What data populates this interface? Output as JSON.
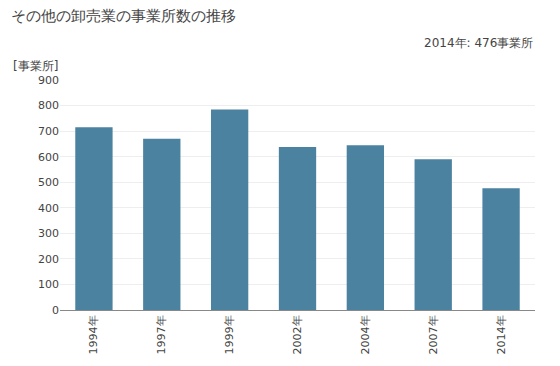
{
  "chart_data": {
    "type": "bar",
    "title": "その他の卸売業の事業所数の推移",
    "ylabel": "[事業所]",
    "annotation": "2014年: 476事業所",
    "categories": [
      "1994年",
      "1997年",
      "1999年",
      "2002年",
      "2004年",
      "2007年",
      "2014年"
    ],
    "values": [
      715,
      670,
      785,
      638,
      645,
      590,
      476
    ],
    "color": "#4a82a0",
    "ylim": [
      0,
      900
    ],
    "yticks": [
      0,
      100,
      200,
      300,
      400,
      500,
      600,
      700,
      800,
      900
    ],
    "grid": true
  }
}
